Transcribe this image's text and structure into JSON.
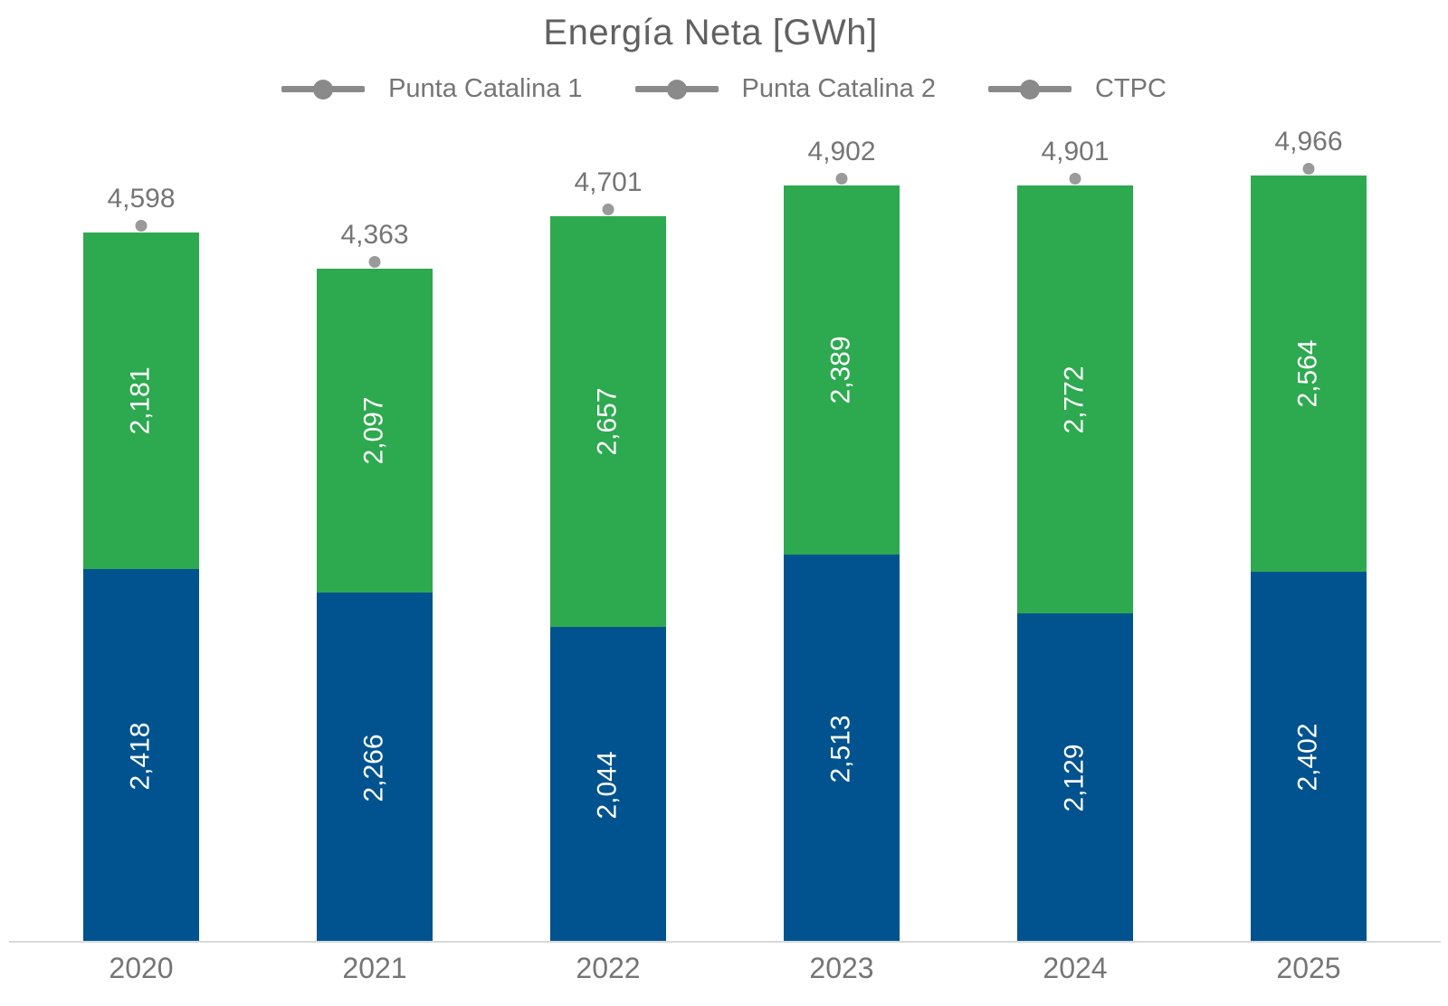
{
  "chart_data": {
    "type": "bar",
    "stacked": true,
    "title": "Energía Neta [GWh]",
    "categories": [
      "2020",
      "2021",
      "2022",
      "2023",
      "2024",
      "2025"
    ],
    "series": [
      {
        "name": "Punta Catalina 1",
        "role": "bar-segment-bottom",
        "color": "#00538E",
        "values": [
          2418,
          2266,
          2044,
          2513,
          2129,
          2402
        ]
      },
      {
        "name": "Punta Catalina 2",
        "role": "bar-segment-top",
        "color": "#2DA94F",
        "values": [
          2181,
          2097,
          2657,
          2389,
          2772,
          2564
        ]
      },
      {
        "name": "CTPC",
        "role": "total-point-marker",
        "color": "#9A9A9A",
        "values": [
          4598,
          4363,
          4701,
          4902,
          4901,
          4966
        ]
      }
    ],
    "total_labels": [
      "4,598",
      "4,363",
      "4,701",
      "4,902",
      "4,901",
      "4,966"
    ],
    "segment_labels": {
      "punta_catalina_1": [
        "2,418",
        "2,266",
        "2,044",
        "2,513",
        "2,129",
        "2,402"
      ],
      "punta_catalina_2": [
        "2,181",
        "2,097",
        "2,657",
        "2,389",
        "2,772",
        "2,564"
      ]
    },
    "ylim": [
      0,
      4966
    ],
    "grid": false,
    "y_axis_labels": false,
    "legend_position": "top",
    "value_label_rotation": -90
  },
  "colors": {
    "bar_blue": "#00538E",
    "bar_green": "#2DA94F",
    "marker_gray": "#9A9A9A",
    "legend_gray": "#8A8A8A",
    "text_gray": "#757575",
    "title_gray": "#616161",
    "axis_line": "#D8D8D8",
    "in_bar_label": "#FFFFFF",
    "background": "#FFFFFF"
  }
}
